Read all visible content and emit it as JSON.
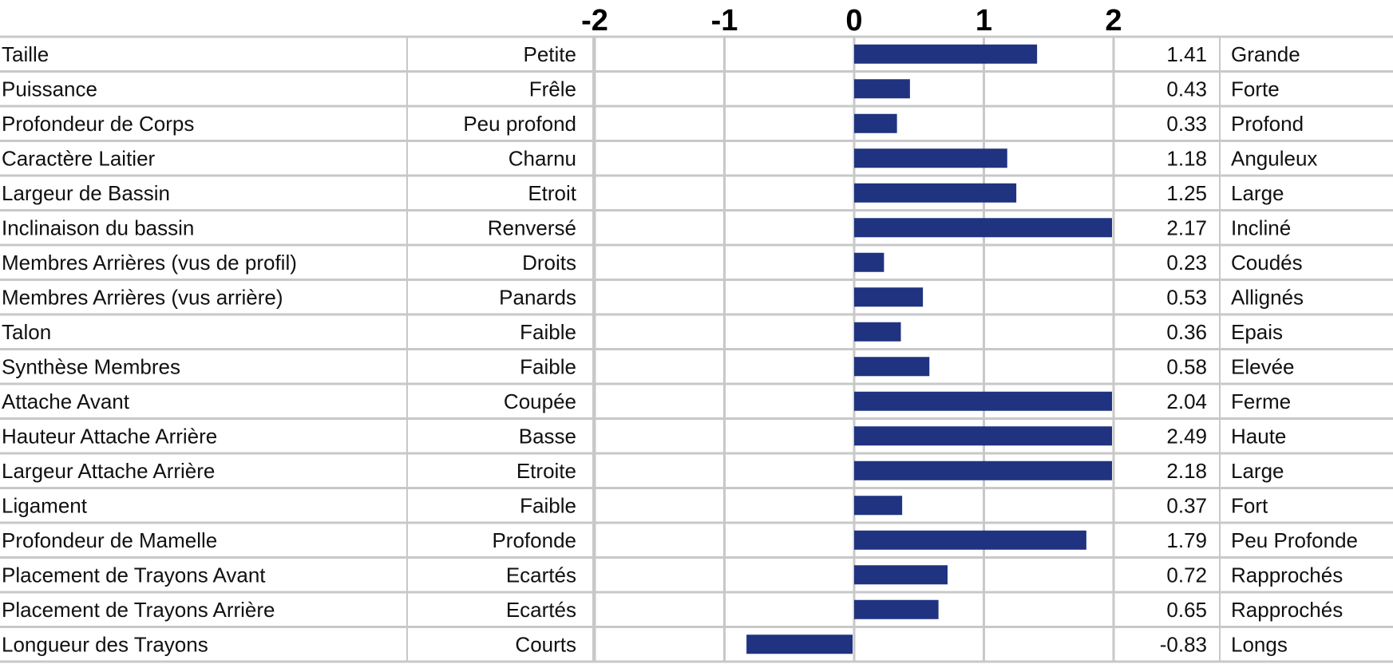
{
  "chart_data": {
    "type": "bar",
    "orientation": "horizontal",
    "xlim": [
      -2,
      2
    ],
    "ticks": [
      "-2",
      "-1",
      "0",
      "1",
      "2"
    ],
    "tick_values": [
      -2,
      -1,
      0,
      1,
      2
    ],
    "bar_color": "#1f3380",
    "grid": true,
    "rows": [
      {
        "trait": "Taille",
        "low": "Petite",
        "value": 1.41,
        "value_label": "1.41",
        "high": "Grande"
      },
      {
        "trait": "Puissance",
        "low": "Frêle",
        "value": 0.43,
        "value_label": "0.43",
        "high": "Forte"
      },
      {
        "trait": "Profondeur de Corps",
        "low": "Peu profond",
        "value": 0.33,
        "value_label": "0.33",
        "high": "Profond"
      },
      {
        "trait": "Caractère Laitier",
        "low": "Charnu",
        "value": 1.18,
        "value_label": "1.18",
        "high": "Anguleux"
      },
      {
        "trait": "Largeur de Bassin",
        "low": "Etroit",
        "value": 1.25,
        "value_label": "1.25",
        "high": "Large"
      },
      {
        "trait": "Inclinaison du bassin",
        "low": "Renversé",
        "value": 2.17,
        "value_label": "2.17",
        "high": "Incliné"
      },
      {
        "trait": "Membres Arrières (vus de profil)",
        "low": "Droits",
        "value": 0.23,
        "value_label": "0.23",
        "high": "Coudés"
      },
      {
        "trait": "Membres Arrières (vus arrière)",
        "low": "Panards",
        "value": 0.53,
        "value_label": "0.53",
        "high": "Allignés"
      },
      {
        "trait": "Talon",
        "low": "Faible",
        "value": 0.36,
        "value_label": "0.36",
        "high": "Epais"
      },
      {
        "trait": "Synthèse Membres",
        "low": "Faible",
        "value": 0.58,
        "value_label": "0.58",
        "high": "Elevée"
      },
      {
        "trait": "Attache Avant",
        "low": "Coupée",
        "value": 2.04,
        "value_label": "2.04",
        "high": "Ferme"
      },
      {
        "trait": "Hauteur Attache Arrière",
        "low": "Basse",
        "value": 2.49,
        "value_label": "2.49",
        "high": "Haute"
      },
      {
        "trait": "Largeur Attache Arrière",
        "low": "Etroite",
        "value": 2.18,
        "value_label": "2.18",
        "high": "Large"
      },
      {
        "trait": "Ligament",
        "low": "Faible",
        "value": 0.37,
        "value_label": "0.37",
        "high": "Fort"
      },
      {
        "trait": "Profondeur de Mamelle",
        "low": "Profonde",
        "value": 1.79,
        "value_label": "1.79",
        "high": "Peu Profonde"
      },
      {
        "trait": "Placement de Trayons Avant",
        "low": "Ecartés",
        "value": 0.72,
        "value_label": "0.72",
        "high": "Rapprochés"
      },
      {
        "trait": "Placement de Trayons Arrière",
        "low": "Ecartés",
        "value": 0.65,
        "value_label": "0.65",
        "high": "Rapprochés"
      },
      {
        "trait": "Longueur des Trayons",
        "low": "Courts",
        "value": -0.83,
        "value_label": "-0.83",
        "high": "Longs"
      }
    ]
  }
}
